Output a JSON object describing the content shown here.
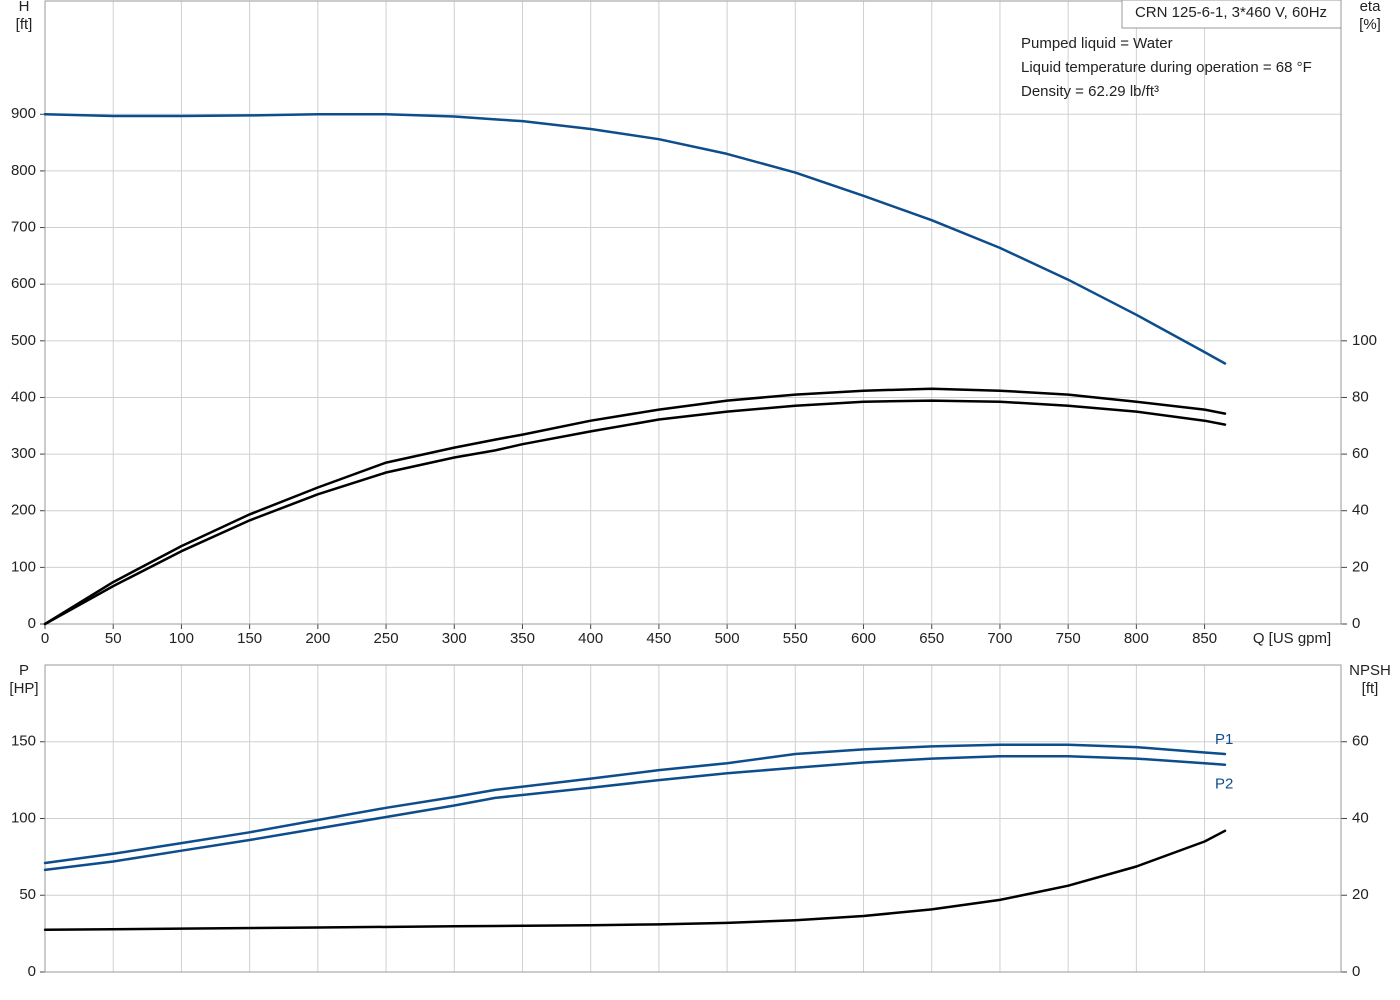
{
  "chart_data": [
    {
      "type": "line",
      "title": "CRN 125-6-1, 3*460 V, 60Hz",
      "annotations": [
        "Pumped liquid = Water",
        "Liquid temperature during operation = 68 °F",
        "Density = 62.29 lb/ft³"
      ],
      "x_label": "Q [US gpm]",
      "y_label": [
        "H",
        "[ft]"
      ],
      "y2_label": [
        "eta",
        "[%]"
      ],
      "xlim": [
        0,
        950
      ],
      "xticks": [
        0,
        50,
        100,
        150,
        200,
        250,
        300,
        350,
        400,
        450,
        500,
        550,
        600,
        650,
        700,
        750,
        800,
        850
      ],
      "ylim": [
        0,
        1100
      ],
      "yticks": [
        0,
        100,
        200,
        300,
        400,
        500,
        600,
        700,
        800,
        900
      ],
      "y2lim": [
        0,
        220
      ],
      "y2ticks": [
        0,
        20,
        40,
        60,
        80,
        100
      ],
      "grid": true,
      "series": [
        {
          "color": "#0e4d8c",
          "x": [
            0,
            50,
            100,
            150,
            200,
            250,
            300,
            330,
            350,
            400,
            450,
            500,
            550,
            600,
            650,
            700,
            750,
            800,
            850,
            865
          ],
          "values": [
            900,
            897,
            897,
            898,
            900,
            900,
            896,
            891,
            888,
            874,
            856,
            830,
            797,
            756,
            713,
            664,
            608,
            546,
            480,
            460
          ]
        },
        {
          "color": "#000000",
          "axis": "y2",
          "x": [
            0,
            50,
            100,
            150,
            200,
            250,
            300,
            330,
            350,
            400,
            450,
            500,
            550,
            600,
            650,
            700,
            750,
            800,
            850,
            865
          ],
          "values": [
            0,
            14.8,
            27.5,
            38.7,
            48.2,
            57,
            62.3,
            65.1,
            66.9,
            71.8,
            75.7,
            78.9,
            81,
            82.4,
            83.1,
            82.4,
            81,
            78.5,
            75.7,
            74.3
          ]
        },
        {
          "color": "#000000",
          "axis": "y2",
          "x": [
            0,
            50,
            100,
            150,
            200,
            250,
            300,
            330,
            350,
            400,
            450,
            500,
            550,
            600,
            650,
            700,
            750,
            800,
            850,
            865
          ],
          "values": [
            0,
            13.4,
            25.7,
            36.6,
            45.8,
            53.5,
            58.8,
            61.3,
            63.5,
            68,
            72.2,
            75,
            77.1,
            78.5,
            78.9,
            78.5,
            77.1,
            75,
            71.8,
            70.4
          ]
        }
      ]
    },
    {
      "type": "line",
      "y_label": [
        "P",
        "[HP]"
      ],
      "y2_label": [
        "NPSH",
        "[ft]"
      ],
      "xlim": [
        0,
        950
      ],
      "ylim": [
        0,
        200
      ],
      "yticks": [
        0,
        50,
        100,
        150
      ],
      "y2lim": [
        0,
        80
      ],
      "y2ticks": [
        0,
        20,
        40,
        60
      ],
      "grid": true,
      "series": [
        {
          "name": "P1",
          "color": "#0e4d8c",
          "x": [
            0,
            50,
            100,
            150,
            200,
            250,
            300,
            330,
            400,
            450,
            500,
            550,
            600,
            650,
            700,
            750,
            800,
            850,
            865
          ],
          "values": [
            71,
            77,
            84,
            91,
            99,
            107,
            114,
            118.6,
            126,
            131.5,
            136,
            142,
            145,
            147,
            148,
            148,
            146.5,
            143,
            142
          ]
        },
        {
          "name": "P2",
          "color": "#0e4d8c",
          "x": [
            0,
            50,
            100,
            150,
            200,
            250,
            300,
            330,
            400,
            450,
            500,
            550,
            600,
            650,
            700,
            750,
            800,
            850,
            865
          ],
          "values": [
            66.5,
            72,
            79,
            86,
            93.5,
            101,
            108.5,
            113.4,
            120,
            125,
            129.5,
            133,
            136.5,
            139,
            140.5,
            140.5,
            139,
            136,
            135
          ]
        },
        {
          "color": "#000000",
          "axis": "y2",
          "x": [
            0,
            100,
            200,
            300,
            330,
            400,
            450,
            500,
            550,
            600,
            650,
            700,
            750,
            800,
            850,
            865
          ],
          "values": [
            11,
            11.3,
            11.6,
            11.9,
            12,
            12.2,
            12.4,
            12.8,
            13.5,
            14.6,
            16.3,
            18.8,
            22.5,
            27.5,
            34,
            36.8
          ]
        }
      ]
    }
  ]
}
